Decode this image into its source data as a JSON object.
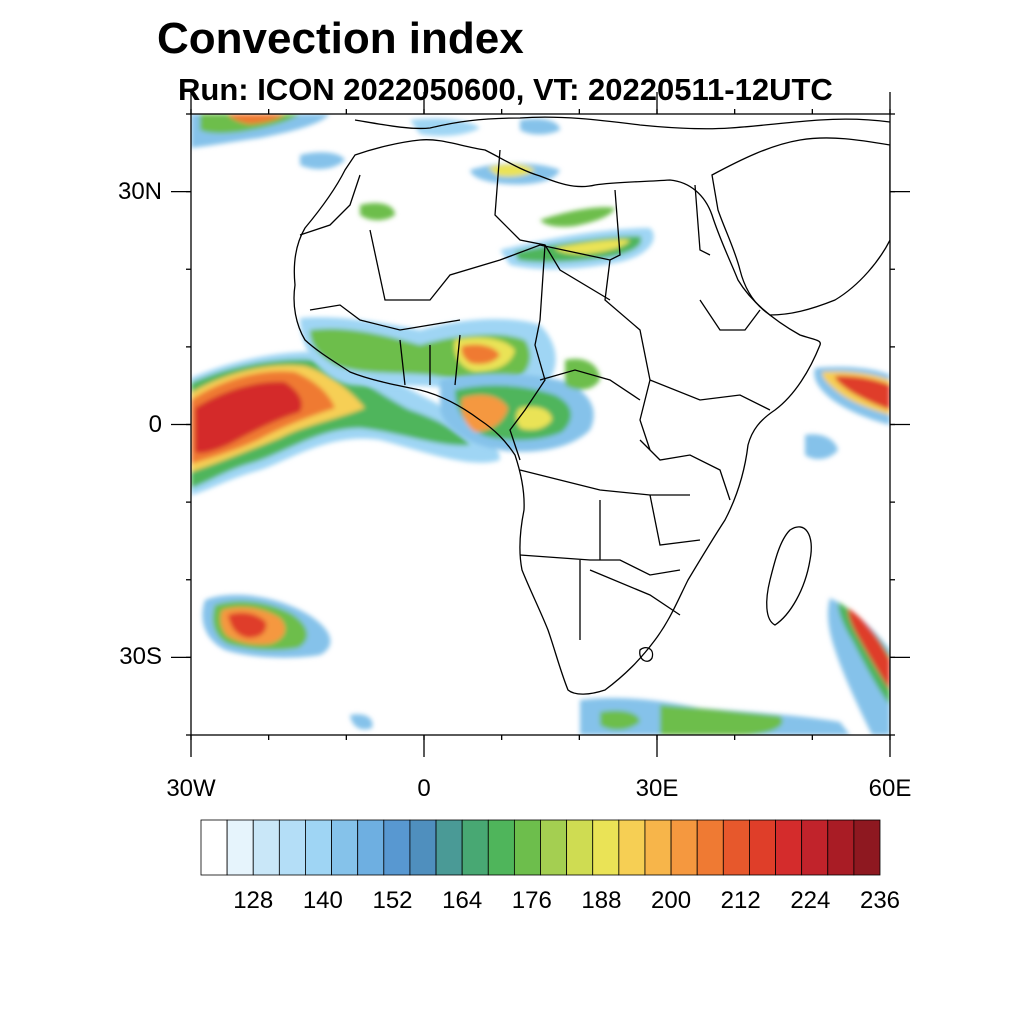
{
  "title": "Convection index",
  "subtitle": "Run: ICON 2022050600,  VT: 20220511-12UTC",
  "map": {
    "lon_range": [
      -30,
      60
    ],
    "lat_range": [
      -40,
      40
    ],
    "lat_ticks": [
      {
        "value": 30,
        "label": "30N"
      },
      {
        "value": 0,
        "label": "0"
      },
      {
        "value": -30,
        "label": "30S"
      }
    ],
    "lon_ticks": [
      {
        "value": -30,
        "label": "30W"
      },
      {
        "value": 0,
        "label": "0"
      },
      {
        "value": 30,
        "label": "30E"
      },
      {
        "value": 60,
        "label": "60E"
      }
    ],
    "region": "Africa"
  },
  "colorbar": {
    "colors": [
      "#ffffff",
      "#e6f4fc",
      "#c9e7f8",
      "#b4def7",
      "#9fd5f4",
      "#85c2ea",
      "#6eafe1",
      "#5898d1",
      "#4f8fbe",
      "#4a9a96",
      "#48a873",
      "#4fb55b",
      "#6dbe4c",
      "#a4cf51",
      "#cfdc52",
      "#eae356",
      "#f6cf54",
      "#f7b54a",
      "#f5983f",
      "#ef7a33",
      "#e7582c",
      "#df3e29",
      "#d42c2c",
      "#c1232b",
      "#a91c25",
      "#8e1820"
    ],
    "labels": [
      "128",
      "140",
      "152",
      "164",
      "176",
      "188",
      "200",
      "212",
      "224",
      "236"
    ]
  }
}
